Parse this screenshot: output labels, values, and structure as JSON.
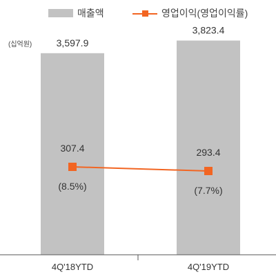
{
  "legend": {
    "bar_label": "매출액",
    "line_label": "영업이익(영업이익률)"
  },
  "unit": "(십억원)",
  "colors": {
    "bar": "#c2c2c2",
    "line": "#f26522",
    "axis": "#555555",
    "text": "#333333"
  },
  "chart_data": {
    "type": "bar",
    "categories": [
      "4Q'18YTD",
      "4Q'19YTD"
    ],
    "series": [
      {
        "name": "매출액",
        "type": "bar",
        "values": [
          3597.9,
          3823.4
        ],
        "labels": [
          "3,597.9",
          "3,823.4"
        ]
      },
      {
        "name": "영업이익(영업이익률)",
        "type": "line",
        "values": [
          307.4,
          293.4
        ],
        "labels": [
          "307.4",
          "293.4"
        ],
        "margin_labels": [
          "(8.5%)",
          "(7.7%)"
        ],
        "margins": [
          8.5,
          7.7
        ]
      }
    ],
    "title": "",
    "xlabel": "",
    "ylabel": "",
    "ylim": [
      0,
      4300
    ],
    "grid": false,
    "legend_position": "top"
  }
}
